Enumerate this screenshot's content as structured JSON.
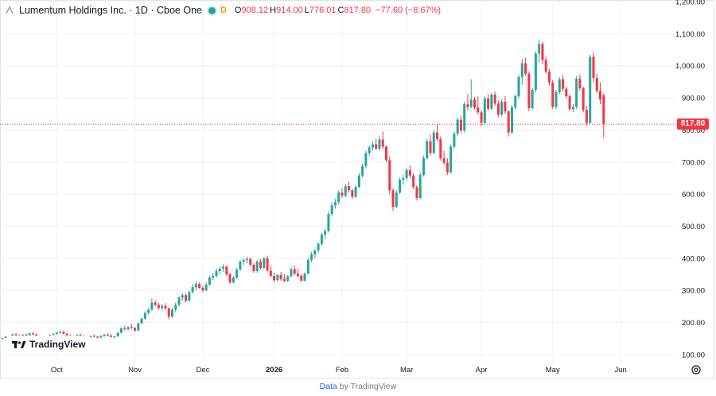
{
  "legend": {
    "symbol": "Lumentum Holdings Inc. · 1D · Cboe One",
    "interval_chip": "D",
    "o_key": "O",
    "o_val": "908.12",
    "h_key": "H",
    "h_val": "914.00",
    "l_key": "L",
    "l_val": "776.01",
    "c_key": "C",
    "c_val": "817.80",
    "change": "−77.60 (−8.67%)"
  },
  "branding": {
    "badge": "TradingView"
  },
  "footer": {
    "link": "Data",
    "suffix": " by TradingView"
  },
  "colors": {
    "up": "#26a69a",
    "down": "#f23645",
    "grid": "#f0f3fa",
    "axis_text": "#131722",
    "last_price_line": "#f23645"
  },
  "chart_data": {
    "type": "candlestick",
    "last_price": 817.8,
    "last_price_label": "817.80",
    "y_axis": {
      "min": 75,
      "max": 1205,
      "ticks": [
        {
          "v": 100,
          "label": "100.00"
        },
        {
          "v": 200,
          "label": "200.00"
        },
        {
          "v": 300,
          "label": "300.00"
        },
        {
          "v": 400,
          "label": "400.00"
        },
        {
          "v": 500,
          "label": "500.00"
        },
        {
          "v": 600,
          "label": "600.00"
        },
        {
          "v": 700,
          "label": "700.00"
        },
        {
          "v": 800,
          "label": "800.00"
        },
        {
          "v": 900,
          "label": "900.00"
        },
        {
          "v": 1000,
          "label": "1,000.00"
        },
        {
          "v": 1100,
          "label": "1,100.00"
        },
        {
          "v": 1200,
          "label": "1,200.00"
        }
      ]
    },
    "x_axis": {
      "ticks": [
        {
          "i": 16,
          "label": "Oct",
          "bold": false
        },
        {
          "i": 39,
          "label": "Nov",
          "bold": false
        },
        {
          "i": 59,
          "label": "Dec",
          "bold": false
        },
        {
          "i": 80,
          "label": "2026",
          "bold": true
        },
        {
          "i": 100,
          "label": "Feb",
          "bold": false
        },
        {
          "i": 119,
          "label": "Mar",
          "bold": false
        },
        {
          "i": 141,
          "label": "Apr",
          "bold": false
        },
        {
          "i": 162,
          "label": "May",
          "bold": false
        },
        {
          "i": 182,
          "label": "Jun",
          "bold": false
        }
      ]
    },
    "candles": [
      [
        150,
        153,
        148,
        152
      ],
      [
        152,
        158,
        150,
        156
      ],
      [
        156,
        159,
        152,
        154
      ],
      [
        154,
        165,
        153,
        163
      ],
      [
        163,
        167,
        159,
        160
      ],
      [
        160,
        163,
        156,
        158
      ],
      [
        158,
        164,
        157,
        162
      ],
      [
        162,
        166,
        158,
        160
      ],
      [
        160,
        168,
        159,
        166
      ],
      [
        166,
        170,
        161,
        163
      ],
      [
        163,
        166,
        155,
        157
      ],
      [
        157,
        160,
        152,
        154
      ],
      [
        154,
        158,
        150,
        153
      ],
      [
        153,
        160,
        151,
        158
      ],
      [
        158,
        163,
        155,
        161
      ],
      [
        161,
        166,
        158,
        164
      ],
      [
        164,
        170,
        162,
        168
      ],
      [
        168,
        175,
        165,
        171
      ],
      [
        171,
        173,
        163,
        165
      ],
      [
        165,
        168,
        158,
        160
      ],
      [
        160,
        163,
        155,
        157
      ],
      [
        157,
        161,
        153,
        159
      ],
      [
        159,
        164,
        156,
        162
      ],
      [
        162,
        165,
        157,
        159
      ],
      [
        159,
        162,
        154,
        157
      ],
      [
        157,
        160,
        152,
        155
      ],
      [
        155,
        159,
        151,
        158
      ],
      [
        158,
        163,
        154,
        156
      ],
      [
        156,
        158,
        151,
        153
      ],
      [
        153,
        160,
        150,
        158
      ],
      [
        158,
        165,
        156,
        162
      ],
      [
        162,
        167,
        157,
        159
      ],
      [
        159,
        163,
        153,
        155
      ],
      [
        155,
        158,
        150,
        157
      ],
      [
        157,
        170,
        155,
        168
      ],
      [
        168,
        185,
        166,
        182
      ],
      [
        182,
        190,
        175,
        179
      ],
      [
        179,
        188,
        174,
        186
      ],
      [
        186,
        195,
        180,
        183
      ],
      [
        183,
        186,
        172,
        175
      ],
      [
        175,
        200,
        173,
        197
      ],
      [
        197,
        215,
        195,
        212
      ],
      [
        212,
        235,
        208,
        230
      ],
      [
        230,
        245,
        225,
        240
      ],
      [
        240,
        275,
        236,
        262
      ],
      [
        262,
        270,
        250,
        255
      ],
      [
        255,
        262,
        240,
        245
      ],
      [
        245,
        258,
        238,
        252
      ],
      [
        252,
        260,
        240,
        244
      ],
      [
        244,
        248,
        210,
        218
      ],
      [
        218,
        245,
        214,
        240
      ],
      [
        240,
        262,
        232,
        255
      ],
      [
        255,
        282,
        250,
        278
      ],
      [
        278,
        292,
        268,
        285
      ],
      [
        285,
        290,
        262,
        268
      ],
      [
        268,
        300,
        265,
        295
      ],
      [
        295,
        320,
        290,
        310
      ],
      [
        310,
        328,
        300,
        320
      ],
      [
        320,
        325,
        305,
        308
      ],
      [
        308,
        315,
        295,
        300
      ],
      [
        300,
        325,
        298,
        318
      ],
      [
        318,
        345,
        314,
        340
      ],
      [
        340,
        355,
        332,
        345
      ],
      [
        345,
        368,
        340,
        360
      ],
      [
        360,
        375,
        350,
        368
      ],
      [
        368,
        382,
        358,
        374
      ],
      [
        374,
        378,
        345,
        350
      ],
      [
        350,
        355,
        320,
        325
      ],
      [
        325,
        345,
        322,
        340
      ],
      [
        340,
        370,
        336,
        365
      ],
      [
        365,
        395,
        360,
        390
      ],
      [
        390,
        400,
        378,
        395
      ],
      [
        395,
        405,
        385,
        398
      ],
      [
        398,
        402,
        375,
        380
      ],
      [
        380,
        385,
        355,
        360
      ],
      [
        360,
        395,
        355,
        390
      ],
      [
        390,
        398,
        365,
        370
      ],
      [
        370,
        405,
        366,
        400
      ],
      [
        400,
        408,
        358,
        362
      ],
      [
        362,
        378,
        340,
        345
      ],
      [
        345,
        355,
        325,
        332
      ],
      [
        332,
        352,
        328,
        348
      ],
      [
        348,
        358,
        330,
        335
      ],
      [
        335,
        350,
        325,
        330
      ],
      [
        330,
        348,
        326,
        344
      ],
      [
        344,
        372,
        340,
        366
      ],
      [
        366,
        378,
        348,
        352
      ],
      [
        352,
        368,
        340,
        345
      ],
      [
        345,
        352,
        326,
        330
      ],
      [
        330,
        356,
        328,
        352
      ],
      [
        352,
        400,
        350,
        395
      ],
      [
        395,
        420,
        388,
        412
      ],
      [
        412,
        428,
        400,
        425
      ],
      [
        425,
        450,
        418,
        445
      ],
      [
        445,
        480,
        440,
        474
      ],
      [
        474,
        492,
        460,
        485
      ],
      [
        485,
        545,
        480,
        538
      ],
      [
        538,
        575,
        530,
        565
      ],
      [
        565,
        585,
        555,
        575
      ],
      [
        575,
        612,
        568,
        605
      ],
      [
        605,
        618,
        588,
        595
      ],
      [
        595,
        632,
        590,
        625
      ],
      [
        625,
        638,
        605,
        612
      ],
      [
        612,
        615,
        585,
        592
      ],
      [
        592,
        628,
        588,
        622
      ],
      [
        622,
        665,
        618,
        658
      ],
      [
        658,
        695,
        652,
        688
      ],
      [
        688,
        735,
        680,
        728
      ],
      [
        728,
        752,
        718,
        745
      ],
      [
        745,
        765,
        735,
        755
      ],
      [
        755,
        772,
        738,
        742
      ],
      [
        742,
        780,
        735,
        770
      ],
      [
        770,
        795,
        740,
        748
      ],
      [
        748,
        752,
        700,
        706
      ],
      [
        706,
        718,
        600,
        612
      ],
      [
        612,
        618,
        548,
        560
      ],
      [
        560,
        612,
        556,
        605
      ],
      [
        605,
        652,
        600,
        645
      ],
      [
        645,
        660,
        630,
        650
      ],
      [
        650,
        682,
        642,
        675
      ],
      [
        675,
        690,
        650,
        658
      ],
      [
        658,
        665,
        615,
        622
      ],
      [
        622,
        628,
        580,
        588
      ],
      [
        588,
        668,
        584,
        660
      ],
      [
        660,
        720,
        655,
        712
      ],
      [
        712,
        772,
        708,
        765
      ],
      [
        765,
        785,
        720,
        728
      ],
      [
        728,
        800,
        725,
        792
      ],
      [
        792,
        818,
        765,
        772
      ],
      [
        772,
        780,
        705,
        712
      ],
      [
        712,
        735,
        690,
        698
      ],
      [
        698,
        712,
        660,
        668
      ],
      [
        668,
        755,
        665,
        748
      ],
      [
        748,
        795,
        742,
        788
      ],
      [
        788,
        840,
        780,
        832
      ],
      [
        832,
        845,
        790,
        798
      ],
      [
        798,
        888,
        792,
        880
      ],
      [
        880,
        912,
        860,
        872
      ],
      [
        872,
        958,
        868,
        895
      ],
      [
        895,
        902,
        865,
        870
      ],
      [
        870,
        905,
        848,
        855
      ],
      [
        855,
        862,
        812,
        822
      ],
      [
        822,
        905,
        818,
        898
      ],
      [
        898,
        912,
        860,
        866
      ],
      [
        866,
        915,
        862,
        910
      ],
      [
        910,
        920,
        875,
        882
      ],
      [
        882,
        892,
        840,
        848
      ],
      [
        848,
        895,
        842,
        888
      ],
      [
        888,
        905,
        850,
        858
      ],
      [
        858,
        862,
        780,
        792
      ],
      [
        792,
        878,
        788,
        870
      ],
      [
        870,
        912,
        862,
        905
      ],
      [
        905,
        972,
        898,
        965
      ],
      [
        965,
        1022,
        940,
        1008
      ],
      [
        1008,
        1025,
        968,
        975
      ],
      [
        975,
        982,
        858,
        868
      ],
      [
        868,
        932,
        862,
        925
      ],
      [
        925,
        1045,
        918,
        1038
      ],
      [
        1038,
        1082,
        1010,
        1068
      ],
      [
        1068,
        1075,
        1005,
        1018
      ],
      [
        1018,
        1028,
        975,
        982
      ],
      [
        982,
        990,
        940,
        948
      ],
      [
        948,
        955,
        865,
        872
      ],
      [
        872,
        925,
        865,
        918
      ],
      [
        918,
        965,
        912,
        958
      ],
      [
        958,
        972,
        920,
        928
      ],
      [
        928,
        935,
        898,
        905
      ],
      [
        905,
        912,
        858,
        865
      ],
      [
        865,
        880,
        855,
        872
      ],
      [
        872,
        968,
        865,
        960
      ],
      [
        960,
        972,
        922,
        930
      ],
      [
        930,
        935,
        855,
        862
      ],
      [
        862,
        875,
        815,
        822
      ],
      [
        822,
        1035,
        818,
        1028
      ],
      [
        1028,
        1045,
        950,
        962
      ],
      [
        962,
        975,
        915,
        922
      ],
      [
        922,
        948,
        880,
        895
      ],
      [
        908,
        914,
        776,
        818
      ]
    ]
  }
}
